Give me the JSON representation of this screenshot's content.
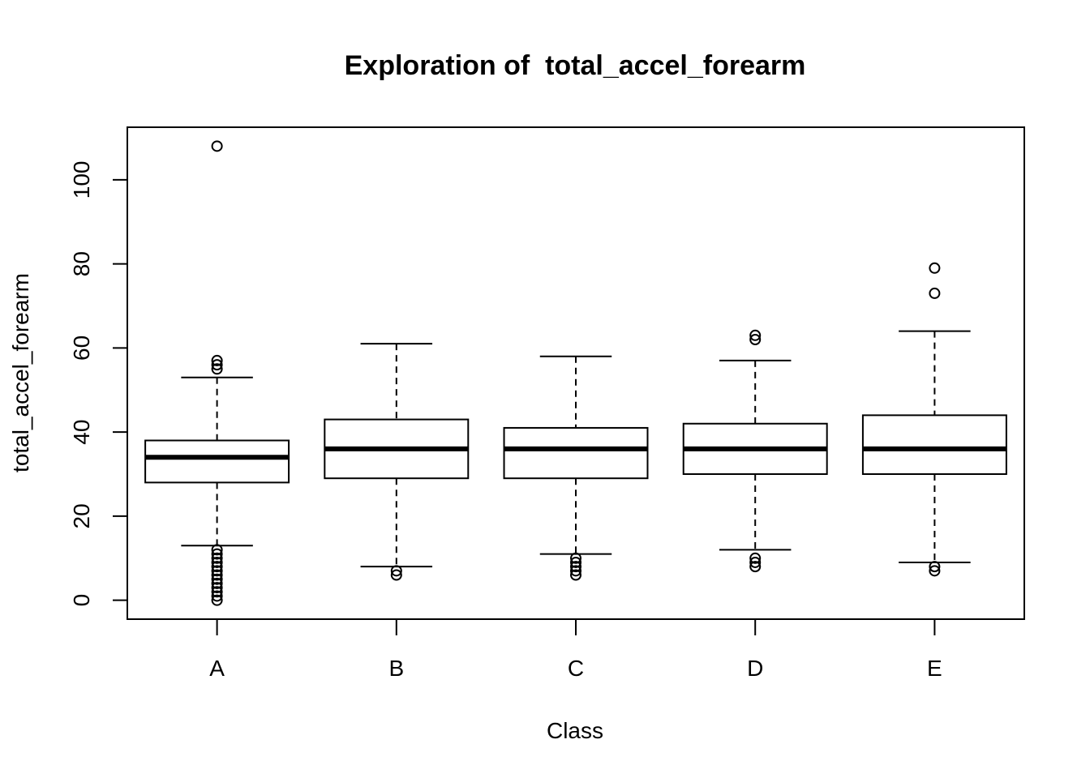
{
  "chart_data": {
    "type": "boxplot",
    "title": "Exploration of  total_accel_forearm",
    "xlabel": "Class",
    "ylabel": "total_accel_forearm",
    "ylim": [
      -4.5,
      112.5
    ],
    "yticks": [
      0,
      20,
      40,
      60,
      80,
      100
    ],
    "grid": false,
    "legend": "none",
    "colors": {
      "stroke": "#000000",
      "background": "#ffffff"
    },
    "boxes": [
      {
        "category": "A",
        "lower_whisker": 13,
        "q1": 28,
        "median": 34,
        "q3": 38,
        "upper_whisker": 53,
        "outliers": [
          55,
          56,
          57,
          12,
          11,
          10,
          9,
          8,
          7,
          6,
          5,
          4,
          3,
          2,
          1,
          0,
          108
        ]
      },
      {
        "category": "B",
        "lower_whisker": 8,
        "q1": 29,
        "median": 36,
        "q3": 43,
        "upper_whisker": 61,
        "outliers": [
          7,
          6
        ]
      },
      {
        "category": "C",
        "lower_whisker": 11,
        "q1": 29,
        "median": 36,
        "q3": 41,
        "upper_whisker": 58,
        "outliers": [
          10,
          9,
          8,
          7,
          6
        ]
      },
      {
        "category": "D",
        "lower_whisker": 12,
        "q1": 30,
        "median": 36,
        "q3": 42,
        "upper_whisker": 57,
        "outliers": [
          10,
          9,
          8,
          62,
          63
        ]
      },
      {
        "category": "E",
        "lower_whisker": 9,
        "q1": 30,
        "median": 36,
        "q3": 44,
        "upper_whisker": 64,
        "outliers": [
          8,
          7,
          73,
          79
        ]
      }
    ]
  }
}
